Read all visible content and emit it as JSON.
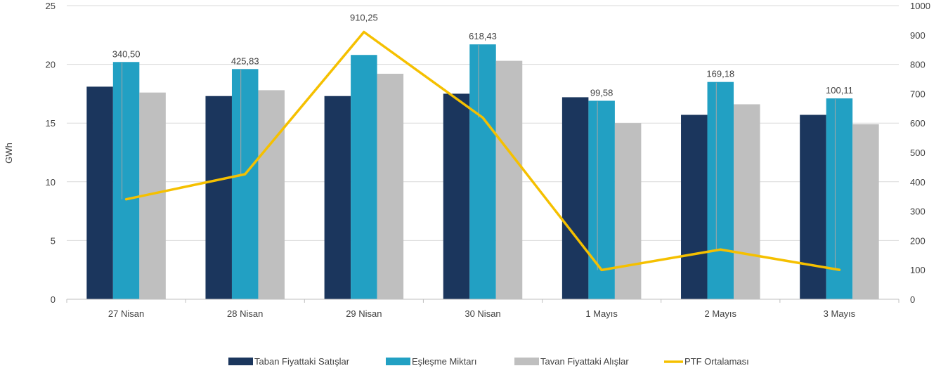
{
  "chart_data": {
    "type": "bar",
    "title": "",
    "ylabel": "GWh",
    "y2label": "",
    "categories": [
      "27 Nisan",
      "28 Nisan",
      "29 Nisan",
      "30 Nisan",
      "1 Mayıs",
      "2 Mayıs",
      "3 Mayıs"
    ],
    "ylim": [
      0,
      25
    ],
    "yticks": [
      "0",
      "5",
      "10",
      "15",
      "20",
      "25"
    ],
    "y2lim": [
      0,
      1000
    ],
    "y2ticks": [
      "0",
      "100",
      "200",
      "300",
      "400",
      "500",
      "600",
      "700",
      "800",
      "900",
      "1000"
    ],
    "series": [
      {
        "name": "Taban Fiyattaki Satışlar",
        "type": "bar",
        "axis": "left",
        "color": "#1b365d",
        "values": [
          18.1,
          17.3,
          17.3,
          17.5,
          17.2,
          15.7,
          15.7
        ]
      },
      {
        "name": "Eşleşme Miktarı",
        "type": "bar",
        "axis": "left",
        "color": "#22a0c3",
        "values": [
          20.2,
          19.6,
          20.8,
          21.7,
          16.9,
          18.5,
          17.1
        ]
      },
      {
        "name": "Tavan Fiyattaki Alışlar",
        "type": "bar",
        "axis": "left",
        "color": "#bfbfbf",
        "values": [
          17.6,
          17.8,
          19.2,
          20.3,
          15.0,
          16.6,
          14.9
        ]
      },
      {
        "name": "PTF Ortalaması",
        "type": "line",
        "axis": "right",
        "color": "#f5c000",
        "values": [
          340.5,
          425.83,
          910.25,
          618.43,
          99.58,
          169.18,
          100.11
        ],
        "labels": [
          "340,50",
          "425,83",
          "910,25",
          "618,43",
          "99,58",
          "169,18",
          "100,11"
        ]
      }
    ],
    "grid": true,
    "legend": "bottom"
  }
}
